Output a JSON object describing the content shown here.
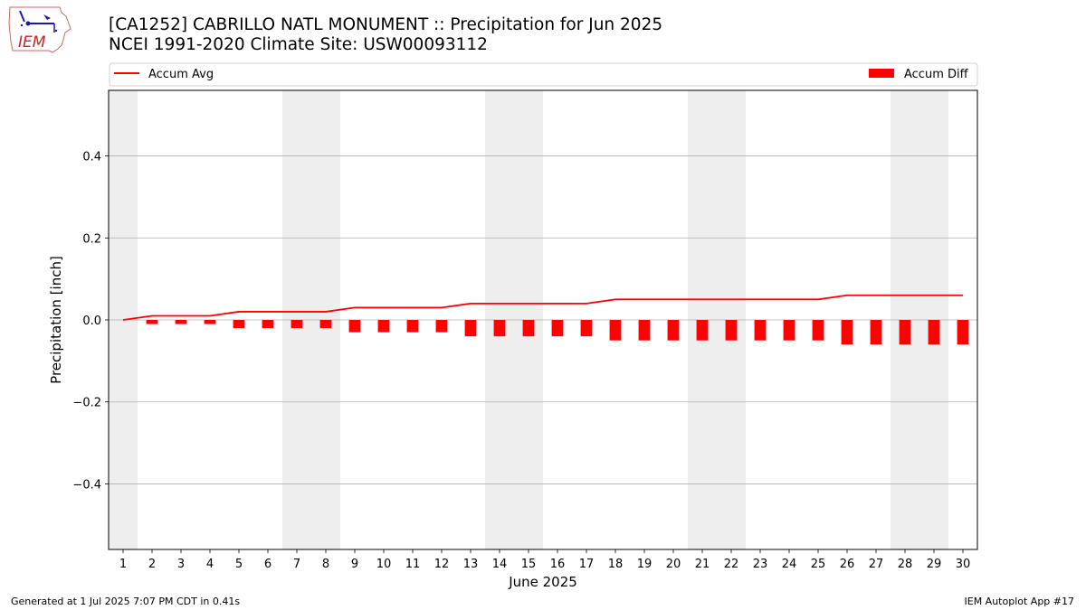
{
  "header": {
    "title_line1": "[CA1252] CABRILLO NATL MONUMENT :: Precipitation for Jun 2025",
    "title_line2": "NCEI 1991-2020 Climate Site: USW00093112",
    "logo_text": "IEM"
  },
  "footer": {
    "generated": "Generated at 1 Jul 2025 7:07 PM CDT in 0.41s",
    "app": "IEM Autoplot App #17"
  },
  "colors": {
    "accent": "#ff0000",
    "weekend_shade": "#eeeeee",
    "grid": "#b0b0b0",
    "logo_blue": "#1a1aa8",
    "logo_red": "#cc2222"
  },
  "chart_data": {
    "type": "bar",
    "xlabel": "June 2025",
    "ylabel": "Precipitation [inch]",
    "xlim": [
      0.5,
      30.5
    ],
    "ylim": [
      -0.56,
      0.56
    ],
    "yticks": [
      -0.4,
      -0.2,
      0.0,
      0.2,
      0.4
    ],
    "ytick_labels": [
      "−0.4",
      "−0.2",
      "0.0",
      "0.2",
      "0.4"
    ],
    "grid": "horizontal",
    "legend_placement": "top",
    "shaded_days": [
      1,
      7,
      8,
      14,
      15,
      21,
      22,
      28,
      29
    ],
    "categories": [
      1,
      2,
      3,
      4,
      5,
      6,
      7,
      8,
      9,
      10,
      11,
      12,
      13,
      14,
      15,
      16,
      17,
      18,
      19,
      20,
      21,
      22,
      23,
      24,
      25,
      26,
      27,
      28,
      29,
      30
    ],
    "series": [
      {
        "name": "Accum Avg",
        "kind": "line",
        "color": "#ff0000",
        "values": [
          0.0,
          0.01,
          0.01,
          0.01,
          0.02,
          0.02,
          0.02,
          0.02,
          0.03,
          0.03,
          0.03,
          0.03,
          0.04,
          0.04,
          0.04,
          0.04,
          0.04,
          0.05,
          0.05,
          0.05,
          0.05,
          0.05,
          0.05,
          0.05,
          0.05,
          0.06,
          0.06,
          0.06,
          0.06,
          0.06
        ]
      },
      {
        "name": "Accum Diff",
        "kind": "bar",
        "color": "#ff0000",
        "values": [
          0.0,
          -0.01,
          -0.01,
          -0.01,
          -0.02,
          -0.02,
          -0.02,
          -0.02,
          -0.03,
          -0.03,
          -0.03,
          -0.03,
          -0.04,
          -0.04,
          -0.04,
          -0.04,
          -0.04,
          -0.05,
          -0.05,
          -0.05,
          -0.05,
          -0.05,
          -0.05,
          -0.05,
          -0.05,
          -0.06,
          -0.06,
          -0.06,
          -0.06,
          -0.06
        ]
      }
    ]
  }
}
